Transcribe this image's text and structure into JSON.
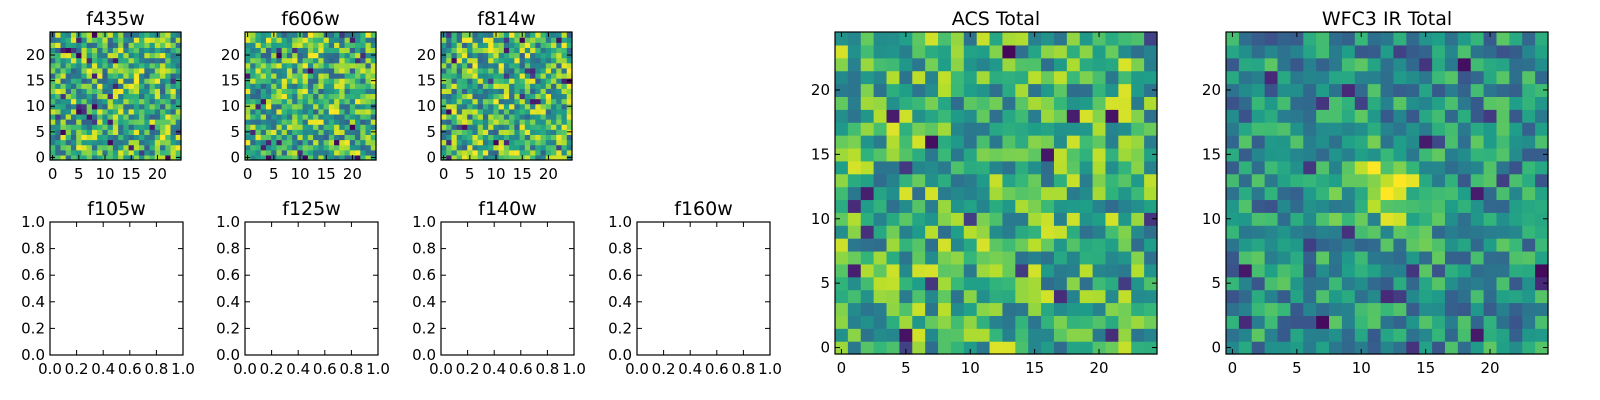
{
  "chart_data": [
    {
      "type": "heatmap",
      "title": "f435w",
      "xticks": [
        "0",
        "5",
        "10",
        "15",
        "20"
      ],
      "yticks": [
        "0",
        "5",
        "10",
        "15",
        "20"
      ],
      "xlim": [
        -0.5,
        24.5
      ],
      "ylim": [
        -0.5,
        24.5
      ],
      "grid_size": 25,
      "colormap": "viridis",
      "seed": 11,
      "rng_min": 0.3,
      "rng_max": 1.0,
      "pattern": "noise"
    },
    {
      "type": "heatmap",
      "title": "f606w",
      "xticks": [
        "0",
        "5",
        "10",
        "15",
        "20"
      ],
      "yticks": [
        "0",
        "5",
        "10",
        "15",
        "20"
      ],
      "xlim": [
        -0.5,
        24.5
      ],
      "ylim": [
        -0.5,
        24.5
      ],
      "grid_size": 25,
      "colormap": "viridis",
      "seed": 22,
      "rng_min": 0.3,
      "rng_max": 1.0,
      "pattern": "noise"
    },
    {
      "type": "heatmap",
      "title": "f814w",
      "xticks": [
        "0",
        "5",
        "10",
        "15",
        "20"
      ],
      "yticks": [
        "0",
        "5",
        "10",
        "15",
        "20"
      ],
      "xlim": [
        -0.5,
        24.5
      ],
      "ylim": [
        -0.5,
        24.5
      ],
      "grid_size": 25,
      "colormap": "viridis",
      "seed": 33,
      "rng_min": 0.3,
      "rng_max": 1.0,
      "pattern": "noise"
    },
    {
      "type": "empty",
      "title": "f105w",
      "xticks": [
        "0.0",
        "0.2",
        "0.4",
        "0.6",
        "0.8",
        "1.0"
      ],
      "yticks": [
        "0.0",
        "0.2",
        "0.4",
        "0.6",
        "0.8",
        "1.0"
      ],
      "xlim": [
        0,
        1
      ],
      "ylim": [
        0,
        1
      ]
    },
    {
      "type": "empty",
      "title": "f125w",
      "xticks": [
        "0.0",
        "0.2",
        "0.4",
        "0.6",
        "0.8",
        "1.0"
      ],
      "yticks": [
        "0.0",
        "0.2",
        "0.4",
        "0.6",
        "0.8",
        "1.0"
      ],
      "xlim": [
        0,
        1
      ],
      "ylim": [
        0,
        1
      ]
    },
    {
      "type": "empty",
      "title": "f140w",
      "xticks": [
        "0.0",
        "0.2",
        "0.4",
        "0.6",
        "0.8",
        "1.0"
      ],
      "yticks": [
        "0.0",
        "0.2",
        "0.4",
        "0.6",
        "0.8",
        "1.0"
      ],
      "xlim": [
        0,
        1
      ],
      "ylim": [
        0,
        1
      ]
    },
    {
      "type": "empty",
      "title": "f160w",
      "xticks": [
        "0.0",
        "0.2",
        "0.4",
        "0.6",
        "0.8",
        "1.0"
      ],
      "yticks": [
        "0.0",
        "0.2",
        "0.4",
        "0.6",
        "0.8",
        "1.0"
      ],
      "xlim": [
        0,
        1
      ],
      "ylim": [
        0,
        1
      ]
    },
    {
      "type": "heatmap",
      "title": "ACS Total",
      "xticks": [
        "0",
        "5",
        "10",
        "15",
        "20"
      ],
      "yticks": [
        "0",
        "5",
        "10",
        "15",
        "20"
      ],
      "xlim": [
        -0.5,
        24.5
      ],
      "ylim": [
        -0.5,
        24.5
      ],
      "grid_size": 25,
      "colormap": "viridis",
      "seed": 44,
      "rng_min": 0.35,
      "rng_max": 0.95,
      "pattern": "noise"
    },
    {
      "type": "heatmap",
      "title": "WFC3 IR Total",
      "xticks": [
        "0",
        "5",
        "10",
        "15",
        "20"
      ],
      "yticks": [
        "0",
        "5",
        "10",
        "15",
        "20"
      ],
      "xlim": [
        -0.5,
        24.5
      ],
      "ylim": [
        -0.5,
        24.5
      ],
      "grid_size": 25,
      "colormap": "viridis",
      "seed": 55,
      "rng_min": 0.25,
      "rng_max": 0.75,
      "pattern": "blob",
      "blob_center": [
        12,
        12
      ],
      "blob_sigma": 2.3,
      "blob_amp": 0.45
    }
  ]
}
